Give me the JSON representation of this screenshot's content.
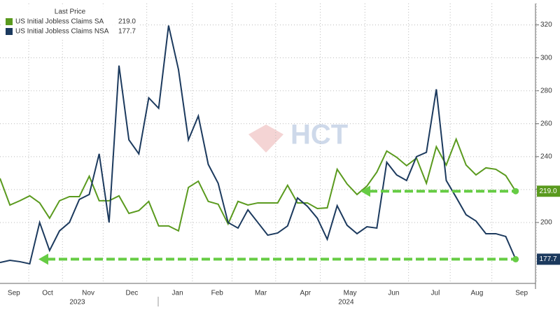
{
  "chart_data": {
    "type": "line",
    "legend_title": "Last Price",
    "watermark": "HCT",
    "x": [
      0,
      1,
      2,
      3,
      4,
      5,
      6,
      7,
      8,
      9,
      10,
      11,
      12,
      13,
      14,
      15,
      16,
      17,
      18,
      19,
      20,
      21,
      22,
      23,
      24,
      25,
      26,
      27,
      28,
      29,
      30,
      31,
      32,
      33,
      34,
      35,
      36,
      37,
      38,
      39,
      40,
      41,
      42,
      43,
      44,
      45,
      46,
      47,
      48,
      49,
      50,
      51,
      52
    ],
    "series": [
      {
        "name": "US Initial Jobless Claims SA",
        "color": "#5a9a1e",
        "last_label": "219.0",
        "values": [
          226.8,
          210.6,
          213.2,
          216.2,
          211.9,
          202.6,
          213.2,
          215.7,
          215.7,
          228.1,
          213.2,
          213.2,
          216.2,
          205.5,
          207.2,
          212.8,
          197.9,
          197.9,
          194.9,
          221.3,
          225.1,
          212.8,
          211.1,
          199.1,
          212.8,
          210.6,
          211.9,
          211.9,
          211.9,
          222.6,
          211.9,
          211.9,
          208.5,
          208.9,
          232.3,
          223.4,
          217.0,
          222.1,
          230.6,
          243.4,
          239.6,
          234.5,
          239.1,
          223.8,
          246.0,
          234.9,
          250.6,
          234.9,
          228.9,
          233.2,
          232.3,
          228.5,
          219.0
        ]
      },
      {
        "name": "US Initial Jobless Claims NSA",
        "color": "#1c3a5e",
        "last_label": "177.7",
        "values": [
          175.7,
          177.0,
          176.2,
          174.9,
          200,
          183.0,
          194.9,
          200,
          214.0,
          217.0,
          241.7,
          200,
          295.3,
          250.2,
          241.7,
          275.7,
          269.4,
          319.6,
          292.8,
          250.2,
          264.7,
          235.3,
          223.8,
          200,
          196.6,
          207.7,
          200,
          192.3,
          193.6,
          197.9,
          214.9,
          209.8,
          202.6,
          189.8,
          210.2,
          198.3,
          193.2,
          197.4,
          196.6,
          236.6,
          228.9,
          225.5,
          240.0,
          242.6,
          280.9,
          225.5,
          215.3,
          204.7,
          200.9,
          193.2,
          193.2,
          191.5,
          177.7
        ]
      }
    ],
    "xlim": [
      0,
      54
    ],
    "xticks": [
      {
        "value": 1.4,
        "label": "Sep"
      },
      {
        "value": 4.8,
        "label": "Oct"
      },
      {
        "value": 8.9,
        "label": "Nov"
      },
      {
        "value": 13.3,
        "label": "Dec"
      },
      {
        "value": 17.9,
        "label": "Jan"
      },
      {
        "value": 21.9,
        "label": "Feb"
      },
      {
        "value": 26.3,
        "label": "Mar"
      },
      {
        "value": 30.8,
        "label": "Apr"
      },
      {
        "value": 35.3,
        "label": "May"
      },
      {
        "value": 39.7,
        "label": "Jun"
      },
      {
        "value": 43.9,
        "label": "Jul"
      },
      {
        "value": 48.1,
        "label": "Aug"
      },
      {
        "value": 52.6,
        "label": "Sep"
      }
    ],
    "x_year_labels": [
      {
        "value": 7.8,
        "label": "2023"
      },
      {
        "value": 34.9,
        "label": "2024"
      }
    ],
    "ylim": [
      163,
      333
    ],
    "yticks": [
      200,
      220,
      240,
      260,
      280,
      300,
      320
    ],
    "grid": true
  }
}
